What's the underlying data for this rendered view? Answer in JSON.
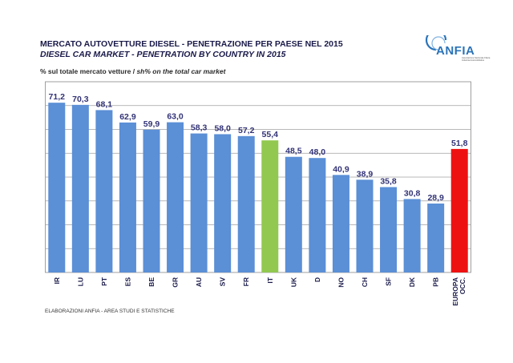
{
  "header": {
    "title_it": "MERCATO AUTOVETTURE DIESEL - PENETRAZIONE PER PAESE NEL 2015",
    "title_en": "DIESEL CAR MARKET - PENETRATION BY COUNTRY IN 2015",
    "subtitle_it": "% sul totale mercato vetture / ",
    "subtitle_en": "sh% on the total car market"
  },
  "logo": {
    "name": "ANFIA",
    "subtitle": "Associazione Nazionale Filiera Industria Automobilistica",
    "color": "#2a73b8"
  },
  "footer": {
    "source": "ELABORAZIONI ANFIA - AREA STUDI E STATISTICHE"
  },
  "colors": {
    "default": "#5b8fd6",
    "italy": "#92c850",
    "europe": "#ee1111",
    "label": "#333377"
  },
  "chart_data": {
    "type": "bar",
    "categories": [
      "IR",
      "LU",
      "PT",
      "ES",
      "BE",
      "GR",
      "AU",
      "SV",
      "FR",
      "IT",
      "UK",
      "D",
      "NO",
      "CH",
      "SF",
      "DK",
      "PB",
      "EUROPA OCC."
    ],
    "values": [
      71.2,
      70.3,
      68.1,
      62.9,
      59.9,
      63.0,
      58.3,
      58.0,
      57.2,
      55.4,
      48.5,
      48.0,
      40.9,
      38.9,
      35.8,
      30.8,
      28.9,
      51.8
    ],
    "value_labels": [
      "71,2",
      "70,3",
      "68,1",
      "62,9",
      "59,9",
      "63,0",
      "58,3",
      "58,0",
      "57,2",
      "55,4",
      "48,5",
      "48,0",
      "40,9",
      "38,9",
      "35,8",
      "30,8",
      "28,9",
      "51,8"
    ],
    "highlight": {
      "IT": "italy",
      "EUROPA OCC.": "europe"
    },
    "ylim": [
      0,
      80
    ],
    "grid": true,
    "xlabel": "",
    "ylabel": ""
  }
}
